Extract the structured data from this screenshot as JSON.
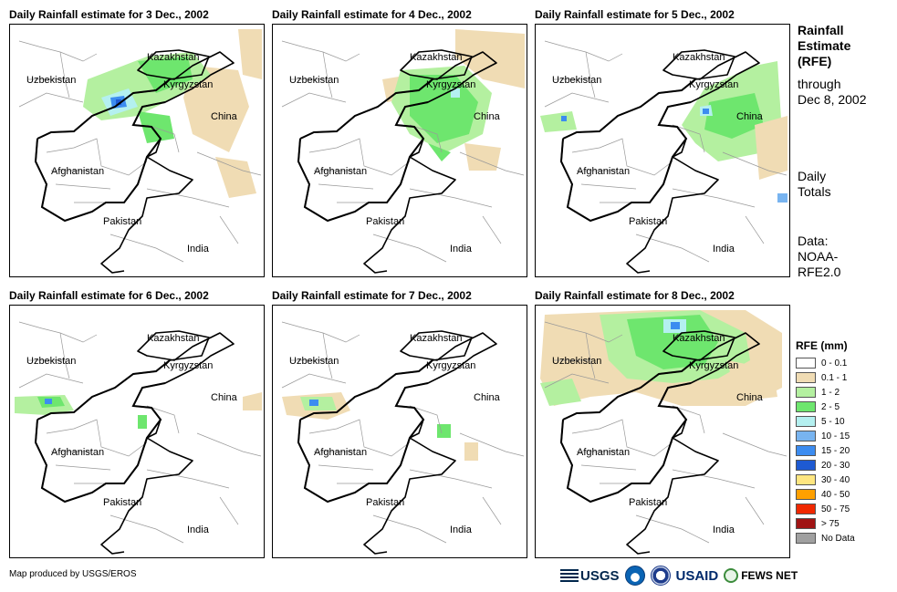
{
  "panels": [
    {
      "title": "Daily Rainfall estimate for 3 Dec., 2002",
      "rain": "p1"
    },
    {
      "title": "Daily Rainfall estimate for 4 Dec., 2002",
      "rain": "p2"
    },
    {
      "title": "Daily Rainfall estimate for 5 Dec., 2002",
      "rain": "p3"
    },
    {
      "title": "Daily Rainfall estimate for 6 Dec., 2002",
      "rain": "p4"
    },
    {
      "title": "Daily Rainfall estimate for 7 Dec., 2002",
      "rain": "p5"
    },
    {
      "title": "Daily Rainfall estimate for 8 Dec., 2002",
      "rain": "p6"
    }
  ],
  "map_labels": {
    "kazakhstan": "Kazakhstan",
    "uzbekistan": "Uzbekistan",
    "kyrgyzstan": "Kyrgyzstan",
    "china": "China",
    "afghanistan": "Afghanistan",
    "pakistan": "Pakistan",
    "india": "India"
  },
  "side": {
    "title_lines": [
      "Rainfall",
      "Estimate",
      "(RFE)"
    ],
    "through": "through",
    "date": "Dec 8, 2002",
    "daily": "Daily",
    "totals": "Totals",
    "data_label": "Data:",
    "source_1": "NOAA-",
    "source_2": "RFE2.0"
  },
  "legend": {
    "title": "RFE (mm)",
    "items": [
      {
        "label": "0 - 0.1",
        "color": "#ffffff"
      },
      {
        "label": "0.1 - 1",
        "color": "#f0dcb4"
      },
      {
        "label": "1 - 2",
        "color": "#b4f0a0"
      },
      {
        "label": "2 - 5",
        "color": "#6ee66e"
      },
      {
        "label": "5 - 10",
        "color": "#b4f0f0"
      },
      {
        "label": "10 - 15",
        "color": "#78b4f0"
      },
      {
        "label": "15 - 20",
        "color": "#3c8cf0"
      },
      {
        "label": "20 - 30",
        "color": "#1e5ad2"
      },
      {
        "label": "30 - 40",
        "color": "#ffe680"
      },
      {
        "label": "40 - 50",
        "color": "#ffa000"
      },
      {
        "label": "50 - 75",
        "color": "#f02800"
      },
      {
        "label": "> 75",
        "color": "#a01414"
      },
      {
        "label": "No Data",
        "color": "#a0a0a0"
      }
    ]
  },
  "credit": "Map produced by USGS/EROS",
  "logos": {
    "usgs": "USGS",
    "usaid": "USAID",
    "fews": "FEWS NET"
  }
}
